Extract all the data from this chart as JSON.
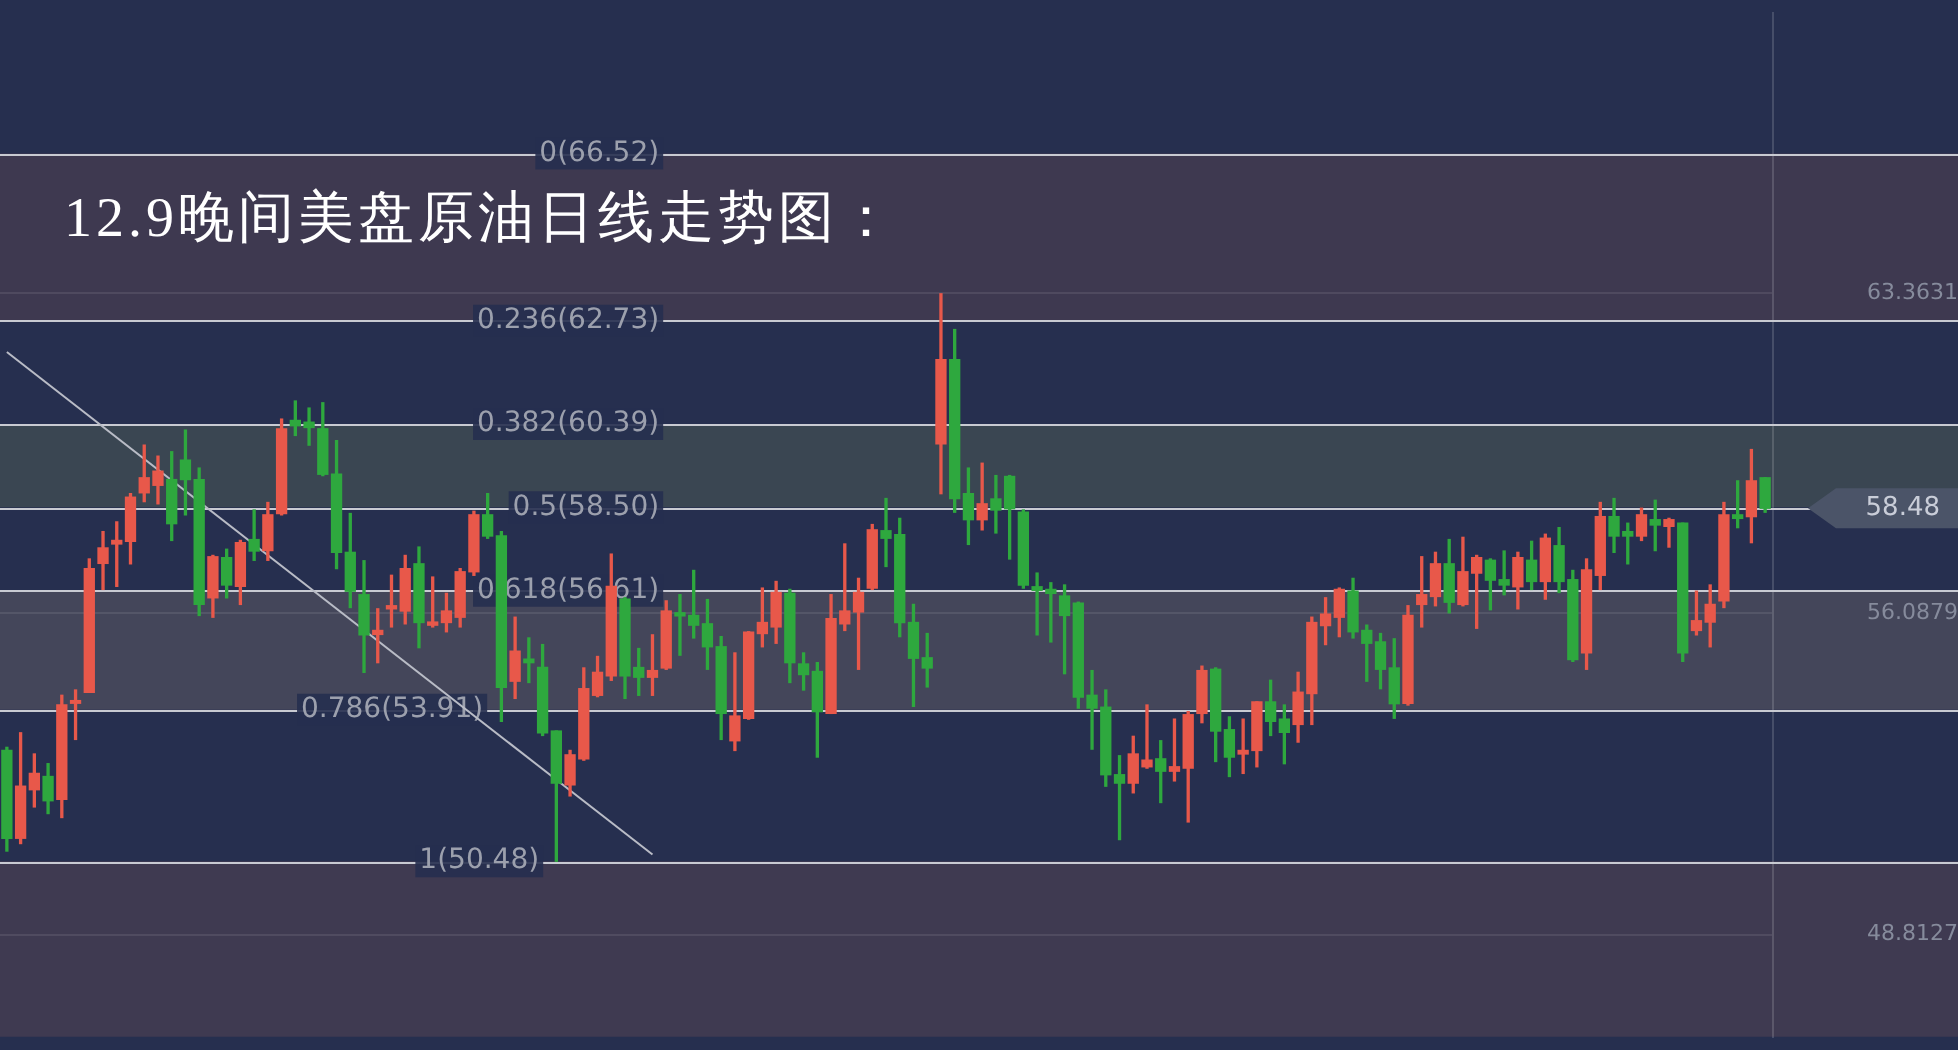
{
  "chart_data": {
    "type": "candlestick",
    "title": "12.9晚间美盘原油日线走势图：",
    "categories": [
      null,
      null,
      null,
      null,
      null,
      null,
      null,
      null,
      null,
      null,
      null,
      null,
      null,
      null,
      null,
      null,
      null,
      null,
      null,
      null,
      null,
      null,
      null,
      null,
      null,
      null,
      null,
      null,
      null,
      null,
      null,
      null,
      null,
      null,
      null,
      null,
      null,
      null,
      null,
      null,
      null,
      null,
      null,
      null,
      null,
      null,
      null,
      null,
      null,
      null,
      null,
      null,
      null,
      null,
      null,
      null,
      null,
      null,
      null,
      null,
      null,
      null,
      null,
      null,
      null,
      null,
      null,
      null,
      null,
      null,
      null,
      null,
      null,
      null,
      null,
      null,
      null,
      null,
      null,
      null,
      null,
      null,
      null,
      null,
      null,
      null,
      null,
      null,
      null,
      null,
      null,
      null,
      null,
      null,
      null,
      null,
      null,
      null,
      null,
      null,
      null,
      null,
      null,
      null,
      null,
      null,
      null,
      null,
      null,
      null,
      null,
      null,
      null,
      null,
      null,
      null,
      null,
      null,
      null,
      null,
      null,
      null,
      null,
      null,
      null,
      null,
      null,
      null,
      null
    ],
    "ohlc": [
      [
        52.99,
        53.06,
        50.71,
        51.0
      ],
      [
        51.0,
        53.39,
        50.88,
        52.18
      ],
      [
        52.1,
        52.91,
        51.71,
        52.47
      ],
      [
        52.4,
        52.69,
        51.56,
        51.85
      ],
      [
        51.88,
        54.24,
        51.47,
        54.02
      ],
      [
        54.06,
        54.36,
        53.24,
        54.12
      ],
      [
        54.31,
        57.33,
        54.31,
        57.11
      ],
      [
        57.23,
        57.95,
        56.64,
        57.58
      ],
      [
        57.67,
        58.17,
        56.71,
        57.75
      ],
      [
        57.73,
        58.81,
        57.22,
        58.73
      ],
      [
        58.83,
        59.91,
        58.63,
        59.17
      ],
      [
        59.0,
        59.66,
        58.58,
        59.32
      ],
      [
        59.13,
        59.76,
        57.75,
        58.13
      ],
      [
        59.57,
        60.25,
        58.33,
        59.13
      ],
      [
        59.13,
        59.39,
        56.05,
        56.3
      ],
      [
        56.45,
        57.41,
        56.01,
        57.38
      ],
      [
        57.36,
        57.55,
        56.45,
        56.74
      ],
      [
        56.71,
        57.75,
        56.3,
        57.7
      ],
      [
        57.77,
        58.44,
        57.3,
        57.51
      ],
      [
        57.52,
        58.61,
        57.3,
        58.33
      ],
      [
        58.36,
        60.5,
        58.33,
        60.28
      ],
      [
        60.47,
        60.91,
        60.13,
        60.35
      ],
      [
        60.43,
        60.75,
        59.91,
        60.31
      ],
      [
        60.28,
        60.87,
        59.22,
        59.25
      ],
      [
        59.25,
        60.01,
        57.11,
        57.48
      ],
      [
        57.48,
        58.36,
        56.23,
        56.6
      ],
      [
        56.52,
        57.29,
        54.76,
        55.61
      ],
      [
        55.62,
        56.2,
        54.98,
        55.71
      ],
      [
        56.2,
        56.96,
        55.79,
        56.27
      ],
      [
        56.15,
        57.41,
        55.86,
        57.11
      ],
      [
        57.22,
        57.6,
        55.32,
        55.89
      ],
      [
        55.83,
        56.92,
        55.79,
        55.9
      ],
      [
        55.89,
        56.55,
        55.68,
        56.15
      ],
      [
        56.01,
        57.11,
        55.79,
        57.04
      ],
      [
        57.04,
        58.41,
        56.96,
        58.33
      ],
      [
        58.33,
        58.81,
        57.8,
        57.85
      ],
      [
        57.85,
        57.95,
        53.65,
        54.42
      ],
      [
        54.56,
        56.01,
        54.17,
        55.24
      ],
      [
        55.06,
        55.54,
        54.53,
        54.98
      ],
      [
        54.87,
        55.39,
        53.33,
        53.39
      ],
      [
        53.43,
        53.43,
        50.48,
        52.25
      ],
      [
        52.21,
        52.99,
        51.96,
        52.89
      ],
      [
        52.8,
        54.86,
        52.77,
        54.39
      ],
      [
        54.24,
        55.12,
        54.21,
        54.76
      ],
      [
        54.68,
        57.44,
        54.58,
        56.71
      ],
      [
        56.42,
        56.45,
        54.17,
        54.68
      ],
      [
        54.87,
        55.3,
        54.24,
        54.65
      ],
      [
        54.65,
        55.61,
        54.24,
        54.8
      ],
      [
        54.86,
        56.38,
        54.83,
        56.15
      ],
      [
        56.11,
        56.52,
        55.15,
        56.04
      ],
      [
        56.05,
        57.07,
        55.54,
        55.83
      ],
      [
        55.86,
        56.41,
        54.83,
        55.34
      ],
      [
        55.34,
        55.57,
        53.24,
        53.83
      ],
      [
        53.21,
        55.2,
        52.99,
        53.77
      ],
      [
        53.72,
        55.68,
        53.7,
        55.67
      ],
      [
        55.64,
        56.67,
        55.34,
        55.89
      ],
      [
        55.79,
        56.82,
        55.42,
        56.57
      ],
      [
        56.55,
        56.64,
        54.53,
        54.98
      ],
      [
        54.95,
        55.2,
        54.36,
        54.71
      ],
      [
        54.78,
        54.98,
        52.84,
        53.87
      ],
      [
        53.83,
        56.52,
        53.83,
        55.98
      ],
      [
        55.86,
        57.67,
        55.71,
        56.15
      ],
      [
        56.13,
        56.89,
        54.83,
        56.57
      ],
      [
        56.67,
        58.11,
        56.64,
        57.99
      ],
      [
        57.97,
        58.7,
        57.16,
        57.8
      ],
      [
        57.88,
        58.25,
        55.57,
        55.89
      ],
      [
        55.89,
        56.3,
        53.99,
        55.08
      ],
      [
        55.09,
        55.64,
        54.43,
        54.86
      ],
      [
        59.94,
        63.34,
        58.81,
        61.85
      ],
      [
        61.85,
        62.53,
        58.39,
        58.7
      ],
      [
        58.81,
        59.39,
        57.66,
        58.22
      ],
      [
        58.22,
        59.5,
        57.99,
        58.58
      ],
      [
        58.69,
        59.22,
        57.92,
        58.44
      ],
      [
        59.2,
        59.22,
        57.33,
        58.47
      ],
      [
        58.39,
        58.44,
        56.67,
        56.74
      ],
      [
        56.7,
        57.01,
        55.61,
        56.62
      ],
      [
        56.64,
        56.79,
        55.45,
        56.55
      ],
      [
        56.49,
        56.74,
        54.73,
        56.05
      ],
      [
        56.33,
        56.35,
        53.95,
        54.2
      ],
      [
        54.24,
        54.8,
        53.02,
        53.95
      ],
      [
        53.97,
        54.36,
        52.18,
        52.44
      ],
      [
        52.44,
        52.87,
        50.97,
        52.25
      ],
      [
        52.25,
        53.31,
        52.03,
        52.91
      ],
      [
        52.62,
        54.02,
        52.59,
        52.77
      ],
      [
        52.8,
        53.21,
        51.81,
        52.52
      ],
      [
        52.52,
        53.7,
        52.3,
        52.62
      ],
      [
        52.59,
        53.87,
        51.37,
        53.8
      ],
      [
        53.83,
        54.9,
        53.62,
        54.8
      ],
      [
        54.83,
        54.86,
        52.74,
        53.43
      ],
      [
        53.46,
        53.75,
        52.4,
        52.84
      ],
      [
        52.91,
        53.7,
        52.47,
        52.99
      ],
      [
        52.99,
        54.09,
        52.62,
        54.09
      ],
      [
        54.09,
        54.58,
        53.33,
        53.65
      ],
      [
        53.7,
        54.02,
        52.69,
        53.4
      ],
      [
        53.58,
        54.76,
        53.18,
        54.31
      ],
      [
        54.28,
        56.01,
        53.58,
        55.89
      ],
      [
        55.82,
        56.45,
        55.39,
        56.08
      ],
      [
        56.01,
        56.67,
        55.57,
        56.64
      ],
      [
        56.6,
        56.89,
        55.54,
        55.68
      ],
      [
        55.71,
        55.83,
        54.56,
        55.42
      ],
      [
        55.45,
        55.64,
        54.39,
        54.83
      ],
      [
        54.86,
        55.52,
        53.72,
        54.05
      ],
      [
        54.06,
        56.27,
        54.02,
        56.05
      ],
      [
        56.3,
        57.38,
        55.79,
        56.52
      ],
      [
        56.48,
        57.48,
        56.27,
        57.22
      ],
      [
        57.22,
        57.77,
        56.11,
        56.35
      ],
      [
        56.3,
        57.82,
        56.27,
        57.04
      ],
      [
        57.01,
        57.41,
        55.76,
        57.36
      ],
      [
        57.3,
        57.33,
        56.18,
        56.85
      ],
      [
        56.86,
        57.51,
        56.52,
        56.74
      ],
      [
        56.7,
        57.48,
        56.2,
        57.36
      ],
      [
        57.3,
        57.73,
        56.64,
        56.82
      ],
      [
        56.82,
        57.89,
        56.42,
        57.8
      ],
      [
        57.63,
        58.04,
        56.57,
        56.82
      ],
      [
        56.86,
        57.07,
        55.01,
        55.05
      ],
      [
        55.2,
        57.33,
        54.83,
        57.08
      ],
      [
        56.96,
        58.61,
        56.64,
        58.29
      ],
      [
        58.29,
        58.7,
        57.48,
        57.85
      ],
      [
        57.95,
        58.14,
        57.22,
        57.85
      ],
      [
        57.85,
        58.48,
        57.75,
        58.33
      ],
      [
        58.22,
        58.66,
        57.52,
        58.1
      ],
      [
        58.07,
        58.25,
        57.6,
        58.22
      ],
      [
        58.14,
        58.14,
        55.01,
        55.2
      ],
      [
        55.71,
        56.6,
        55.61,
        55.93
      ],
      [
        55.9,
        56.74,
        55.34,
        56.3
      ],
      [
        56.38,
        58.61,
        56.23,
        58.33
      ],
      [
        58.33,
        59.1,
        58.04,
        58.25
      ],
      [
        58.29,
        59.81,
        57.7,
        59.1
      ],
      [
        59.17,
        59.17,
        58.39,
        58.48
      ]
    ],
    "colors": [
      "#2ea83e",
      "#e8584a",
      "#e8584a",
      "#2ea83e",
      "#e8584a",
      "#e8584a",
      "#e8584a",
      "#e8584a",
      "#e8584a",
      "#e8584a",
      "#e8584a",
      "#e8584a",
      "#2ea83e",
      "#2ea83e",
      "#2ea83e",
      "#e8584a",
      "#2ea83e",
      "#e8584a",
      "#2ea83e",
      "#e8584a",
      "#e8584a",
      "#2ea83e",
      "#2ea83e",
      "#2ea83e",
      "#2ea83e",
      "#2ea83e",
      "#2ea83e",
      "#e8584a",
      "#e8584a",
      "#e8584a",
      "#2ea83e",
      "#e8584a",
      "#e8584a",
      "#e8584a",
      "#e8584a",
      "#2ea83e",
      "#2ea83e",
      "#e8584a",
      "#2ea83e",
      "#2ea83e",
      "#2ea83e",
      "#e8584a",
      "#e8584a",
      "#e8584a",
      "#e8584a",
      "#2ea83e",
      "#2ea83e",
      "#e8584a",
      "#e8584a",
      "#2ea83e",
      "#2ea83e",
      "#2ea83e",
      "#2ea83e",
      "#e8584a",
      "#e8584a",
      "#e8584a",
      "#e8584a",
      "#2ea83e",
      "#2ea83e",
      "#2ea83e",
      "#e8584a",
      "#e8584a",
      "#e8584a",
      "#e8584a",
      "#2ea83e",
      "#2ea83e",
      "#2ea83e",
      "#2ea83e",
      "#e8584a",
      "#2ea83e",
      "#2ea83e",
      "#e8584a",
      "#2ea83e",
      "#2ea83e",
      "#2ea83e",
      "#2ea83e",
      "#2ea83e",
      "#2ea83e",
      "#2ea83e",
      "#2ea83e",
      "#2ea83e",
      "#2ea83e",
      "#e8584a",
      "#e8584a",
      "#2ea83e",
      "#e8584a",
      "#e8584a",
      "#e8584a",
      "#2ea83e",
      "#2ea83e",
      "#e8584a",
      "#e8584a",
      "#2ea83e",
      "#2ea83e",
      "#e8584a",
      "#e8584a",
      "#e8584a",
      "#e8584a",
      "#2ea83e",
      "#2ea83e",
      "#2ea83e",
      "#2ea83e",
      "#e8584a",
      "#e8584a",
      "#e8584a",
      "#2ea83e",
      "#e8584a",
      "#e8584a",
      "#2ea83e",
      "#2ea83e",
      "#e8584a",
      "#2ea83e",
      "#e8584a",
      "#2ea83e",
      "#2ea83e",
      "#e8584a",
      "#e8584a",
      "#2ea83e",
      "#2ea83e",
      "#e8584a",
      "#2ea83e",
      "#e8584a",
      "#2ea83e",
      "#e8584a",
      "#e8584a",
      "#e8584a",
      "#2ea83e",
      "#e8584a",
      "#2ea83e"
    ],
    "series": [
      {
        "type": "line",
        "color": "#b9bcc6",
        "values": [
          62.02,
          null,
          null,
          null,
          null,
          null,
          null,
          null,
          null,
          null,
          null,
          null,
          null,
          null,
          null,
          null,
          null,
          null,
          null,
          null,
          null,
          null,
          null,
          null,
          null,
          null,
          null,
          null,
          null,
          null,
          null,
          null,
          null,
          null,
          null,
          null,
          null,
          null,
          null,
          null,
          null,
          null,
          null,
          null,
          null,
          null,
          null,
          50.63,
          null,
          null,
          null,
          null,
          null,
          null,
          null,
          null,
          null,
          null,
          null,
          null,
          null,
          null,
          null,
          null,
          null,
          null,
          null,
          null,
          null,
          null,
          null,
          null,
          null,
          null,
          null,
          null,
          null,
          null,
          null,
          null,
          null,
          null,
          null,
          null,
          null,
          null,
          null,
          null,
          null,
          null,
          null,
          null,
          null,
          null,
          null,
          null,
          null,
          null,
          null,
          null,
          null,
          null,
          null,
          null,
          null,
          null,
          null,
          null,
          null,
          null,
          null,
          null,
          null,
          null,
          null,
          null,
          null,
          null,
          null,
          null,
          null,
          null,
          null,
          null,
          null,
          null,
          null,
          null,
          null
        ]
      }
    ],
    "ylim": [
      46.5,
      69.7
    ],
    "yticks": [
      63.3631,
      56.0879,
      48.8127
    ],
    "grid": "y",
    "marker": "none",
    "ref_lines": [
      {
        "axis": "y",
        "value": 66.52,
        "label": "0(66.52)",
        "color": "#c8cad2"
      },
      {
        "axis": "y",
        "value": 62.73,
        "label": "0.236(62.73)",
        "color": "#c8cad2"
      },
      {
        "axis": "y",
        "value": 60.39,
        "label": "0.382(60.39)",
        "color": "#c8cad2"
      },
      {
        "axis": "y",
        "value": 58.5,
        "label": "0.5(58.50)",
        "color": "#c8cad2"
      },
      {
        "axis": "y",
        "value": 56.61,
        "label": "0.618(56.61)",
        "color": "#c8cad2"
      },
      {
        "axis": "y",
        "value": 53.91,
        "label": "0.786(53.91)",
        "color": "#c8cad2"
      },
      {
        "axis": "y",
        "value": 50.48,
        "label": "1(50.48)",
        "color": "#c8cad2"
      }
    ],
    "bands": [
      {
        "axis": "y",
        "from": 62.73,
        "to": 66.52,
        "color": "#3e3950"
      },
      {
        "axis": "y",
        "from": 58.5,
        "to": 60.39,
        "color": "#3a4652"
      },
      {
        "axis": "y",
        "from": 53.91,
        "to": 56.61,
        "color": "#44465a"
      },
      {
        "axis": "y",
        "from": 46.5,
        "to": 50.48,
        "color": "#3f3a51"
      }
    ],
    "annotations": [
      {
        "text": "58.48",
        "y": 58.48
      }
    ]
  }
}
